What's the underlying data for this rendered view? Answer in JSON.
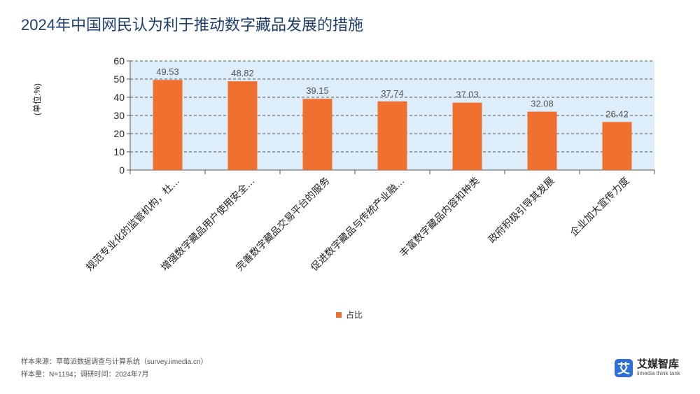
{
  "title": "2024年中国网民认为利于推动数字藏品发展的措施",
  "colors": {
    "bar": "#f07030",
    "plot_bg": "#ddeefa",
    "title": "#1f3f6e"
  },
  "chart_data": {
    "type": "bar",
    "title": "2024年中国网民认为利于推动数字藏品发展的措施",
    "ylabel": "(单位:%)",
    "xlabel": "",
    "ylim": [
      0,
      60
    ],
    "yticks": [
      0,
      10,
      20,
      30,
      40,
      50,
      60
    ],
    "grid": true,
    "legend_position": "bottom",
    "categories": [
      "规范专业化的监管机构，杜…",
      "增强数字藏品用户使用安全…",
      "完善数字藏品交易平台的服务",
      "促进数字藏品与传统产业融…",
      "丰富数字藏品内容和种类",
      "政府积极引导其发展",
      "企业加大宣传力度"
    ],
    "series": [
      {
        "name": "占比",
        "values": [
          49.53,
          48.82,
          39.15,
          37.74,
          37.03,
          32.08,
          26.42
        ]
      }
    ]
  },
  "legend": {
    "label": "占比"
  },
  "footer": {
    "source": "样本来源：草莓派数据调查与计算系统（survey.iimedia.cn）",
    "sample": "样本量：N=1194；调研时间：2024年7月"
  },
  "logo": {
    "mark": "艾",
    "name": "艾媒智库",
    "sub": "iimedia think tank",
    "icon": "iimedia-logo-icon"
  }
}
